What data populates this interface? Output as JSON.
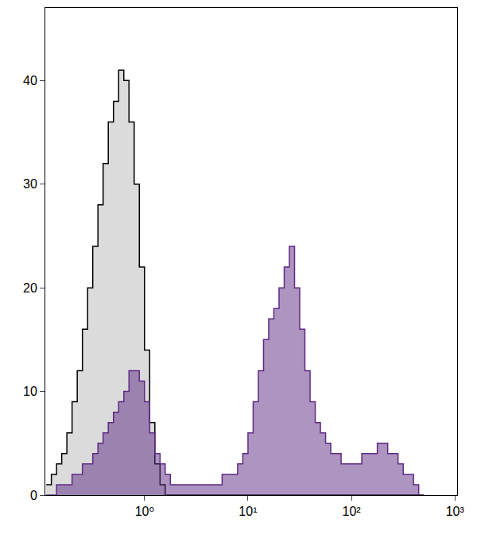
{
  "chart_data": {
    "type": "histogram",
    "log": "x",
    "grid": false,
    "xlim": [
      0.11,
      1050
    ],
    "xticks": [
      {
        "value": 1,
        "label": "10⁰"
      },
      {
        "value": 10,
        "label": "10¹"
      },
      {
        "value": 100,
        "label": "10²"
      },
      {
        "value": 1000,
        "label": "10³"
      }
    ],
    "ylim": [
      0,
      47
    ],
    "yticks": [
      0,
      10,
      20,
      30,
      40
    ],
    "bins": [
      0.1122,
      0.1259,
      0.1413,
      0.1585,
      0.1778,
      0.1995,
      0.2239,
      0.2512,
      0.2818,
      0.3162,
      0.3548,
      0.3981,
      0.4467,
      0.5012,
      0.5623,
      0.631,
      0.7079,
      0.7943,
      0.8913,
      1,
      1.122,
      1.259,
      1.413,
      1.585,
      1.778,
      1.995,
      2.239,
      2.512,
      2.818,
      3.162,
      3.548,
      3.981,
      4.467,
      5.012,
      5.623,
      6.31,
      7.079,
      7.943,
      8.913,
      10,
      11.22,
      12.59,
      14.13,
      15.85,
      17.78,
      19.95,
      22.39,
      25.12,
      28.18,
      31.62,
      35.48,
      39.81,
      44.67,
      50.12,
      56.23,
      63.1,
      70.79,
      79.43,
      89.13,
      100,
      112.2,
      125.9,
      141.3,
      158.5,
      177.8,
      199.5,
      223.9,
      251.2,
      281.8,
      316.2,
      354.8,
      398.1,
      446.7,
      501.2
    ],
    "series": [
      {
        "color": "#000000",
        "values": [
          1,
          2,
          3,
          4,
          6,
          9,
          12,
          16,
          20,
          24,
          28,
          32,
          36,
          38,
          41,
          40,
          36,
          30,
          22,
          14,
          7,
          3,
          1,
          0,
          0,
          0,
          0,
          0,
          0,
          0,
          0,
          0,
          0,
          0,
          0,
          0,
          0,
          0,
          0,
          0,
          0,
          0,
          0,
          0,
          0,
          0,
          0,
          0,
          0,
          0,
          0,
          0,
          0,
          0,
          0,
          0,
          0,
          0,
          0,
          0,
          0,
          0,
          0,
          0,
          0,
          0,
          0,
          0,
          0,
          0,
          0,
          0,
          0,
          0
        ]
      },
      {
        "color": "#5e2a84",
        "values": [
          0,
          0,
          1,
          1,
          1,
          2,
          2,
          3,
          3,
          4,
          5,
          6,
          7,
          8,
          9,
          10,
          12,
          12,
          11,
          9,
          6,
          4,
          3,
          2,
          1,
          1,
          1,
          1,
          1,
          1,
          1,
          1,
          1,
          1,
          2,
          2,
          2,
          3,
          4,
          6,
          9,
          12,
          15,
          17,
          18,
          20,
          22,
          24,
          20,
          16,
          12,
          9,
          7,
          6,
          5,
          4,
          4,
          3,
          3,
          3,
          3,
          4,
          4,
          4,
          5,
          5,
          4,
          4,
          3,
          2,
          2,
          1,
          0
        ]
      }
    ]
  }
}
